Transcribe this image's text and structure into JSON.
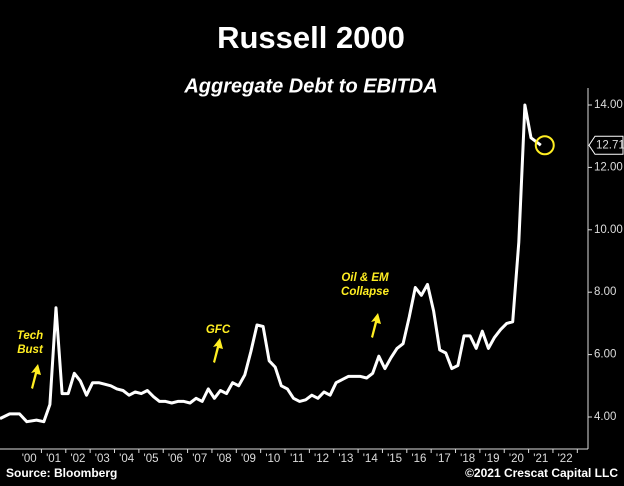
{
  "chart_data": {
    "type": "line",
    "title": "Russell 2000",
    "subtitle": "Aggregate Debt to EBITDA",
    "source": "Source: Bloomberg",
    "credit": "©2021 Crescat Capital LLC",
    "color": "#ffffff",
    "highlight_color": "#ffee22",
    "annotations": [
      [
        "Tech",
        "Bust"
      ],
      [
        "GFC"
      ],
      [
        "Oil & EM",
        "Collapse"
      ]
    ],
    "x": [
      -1.2,
      -0.8,
      -0.4,
      -0.1,
      0.3,
      0.6,
      0.85,
      1.1,
      1.35,
      1.6,
      1.85,
      2.1,
      2.35,
      2.6,
      2.85,
      3.1,
      3.35,
      3.6,
      3.85,
      4.1,
      4.35,
      4.6,
      4.85,
      5.1,
      5.35,
      5.6,
      5.85,
      6.1,
      6.35,
      6.6,
      6.85,
      7.1,
      7.35,
      7.6,
      7.85,
      8.1,
      8.35,
      8.6,
      8.85,
      9.1,
      9.35,
      9.6,
      9.85,
      10.1,
      10.35,
      10.6,
      10.85,
      11.1,
      11.35,
      11.6,
      11.85,
      12.1,
      12.35,
      12.6,
      12.85,
      13.1,
      13.35,
      13.6,
      13.85,
      14.1,
      14.35,
      14.6,
      14.85,
      15.1,
      15.35,
      15.6,
      15.85,
      16.1,
      16.35,
      16.6,
      16.85,
      17.1,
      17.35,
      17.6,
      17.85,
      18.1,
      18.35,
      18.6,
      18.85,
      19.1,
      19.35,
      19.6,
      19.85,
      20.1,
      20.35,
      20.6,
      20.85,
      21.0
    ],
    "values": [
      3.95,
      4.1,
      4.1,
      3.85,
      3.9,
      3.85,
      4.4,
      7.5,
      4.75,
      4.75,
      5.4,
      5.15,
      4.7,
      5.1,
      5.1,
      5.05,
      5.0,
      4.9,
      4.85,
      4.7,
      4.8,
      4.75,
      4.85,
      4.65,
      4.5,
      4.5,
      4.45,
      4.5,
      4.5,
      4.45,
      4.6,
      4.5,
      4.9,
      4.6,
      4.85,
      4.75,
      5.1,
      5.0,
      5.35,
      6.1,
      6.95,
      6.9,
      5.8,
      5.6,
      5.0,
      4.9,
      4.6,
      4.5,
      4.55,
      4.7,
      4.6,
      4.8,
      4.7,
      5.1,
      5.2,
      5.3,
      5.3,
      5.3,
      5.25,
      5.4,
      5.95,
      5.55,
      5.9,
      6.2,
      6.35,
      7.2,
      8.15,
      7.9,
      8.25,
      7.4,
      6.15,
      6.05,
      5.55,
      5.65,
      6.6,
      6.6,
      6.2,
      6.75,
      6.2,
      6.55,
      6.8,
      7.0,
      7.05,
      9.6,
      14.0,
      12.95,
      12.8,
      12.71
    ],
    "xlim": [
      -1.2,
      22.8
    ],
    "xticks": [
      {
        "value": 0,
        "label": "'00"
      },
      {
        "value": 1,
        "label": "'01"
      },
      {
        "value": 2,
        "label": "'02"
      },
      {
        "value": 3,
        "label": "'03"
      },
      {
        "value": 4,
        "label": "'04"
      },
      {
        "value": 5,
        "label": "'05"
      },
      {
        "value": 6,
        "label": "'06"
      },
      {
        "value": 7,
        "label": "'07"
      },
      {
        "value": 8,
        "label": "'08"
      },
      {
        "value": 9,
        "label": "'09"
      },
      {
        "value": 10,
        "label": "'10"
      },
      {
        "value": 11,
        "label": "'11"
      },
      {
        "value": 12,
        "label": "'12"
      },
      {
        "value": 13,
        "label": "'13"
      },
      {
        "value": 14,
        "label": "'14"
      },
      {
        "value": 15,
        "label": "'15"
      },
      {
        "value": 16,
        "label": "'16"
      },
      {
        "value": 17,
        "label": "'17"
      },
      {
        "value": 18,
        "label": "'18"
      },
      {
        "value": 19,
        "label": "'19"
      },
      {
        "value": 20,
        "label": "'20"
      },
      {
        "value": 21,
        "label": "'21"
      },
      {
        "value": 22,
        "label": "'22"
      }
    ],
    "ylim": [
      3,
      14.5
    ],
    "yticks": [
      {
        "value": 4,
        "label": "4.00"
      },
      {
        "value": 6,
        "label": "6.00"
      },
      {
        "value": 8,
        "label": "8.00"
      },
      {
        "value": 10,
        "label": "10.00"
      },
      {
        "value": 12,
        "label": "12.00"
      },
      {
        "value": 14,
        "label": "14.00"
      }
    ]
  }
}
